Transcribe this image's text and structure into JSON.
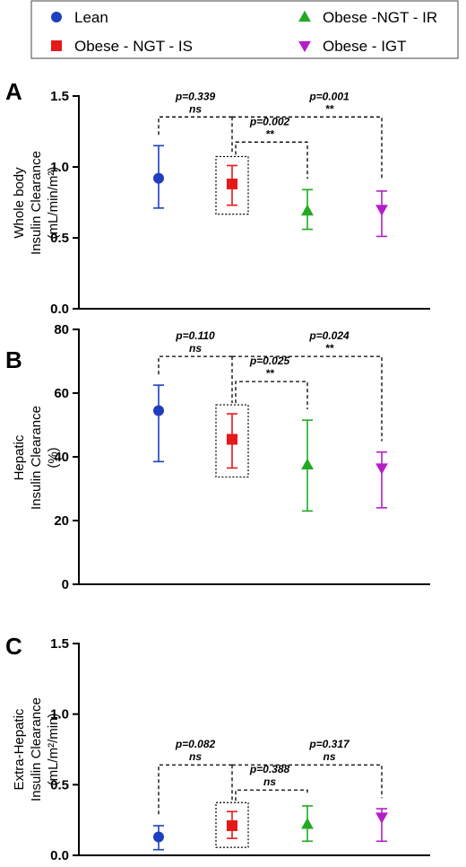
{
  "legend": {
    "items": [
      {
        "label": "Lean",
        "color": "#1f3fbf",
        "marker": "circle"
      },
      {
        "label": "Obese - NGT - IS",
        "color": "#e61919",
        "marker": "square"
      },
      {
        "label": "Obese -NGT - IR",
        "color": "#22aa22",
        "marker": "triangle-up"
      },
      {
        "label": "Obese - IGT",
        "color": "#b41ec8",
        "marker": "triangle-down"
      }
    ]
  },
  "chart_data": [
    {
      "type": "scatter",
      "panel": "A",
      "ylabel_lines": [
        "Whole body",
        "Insulin Clearance",
        "(mL/min/m²)"
      ],
      "ylim": [
        0,
        1.5
      ],
      "yticks": [
        "0.0",
        "0.5",
        "1.0",
        "1.5"
      ],
      "ytick_values": [
        0,
        0.5,
        1.0,
        1.5
      ],
      "groups": [
        "Lean",
        "Obese - NGT - IS",
        "Obese -NGT - IR",
        "Obese - IGT"
      ],
      "mean": [
        0.92,
        0.88,
        0.69,
        0.7
      ],
      "error_low": [
        0.71,
        0.73,
        0.56,
        0.51
      ],
      "error_high": [
        1.15,
        1.01,
        0.84,
        0.83
      ],
      "highlight_group": 1,
      "comparisons": [
        {
          "groups": [
            0,
            1
          ],
          "p": "p=0.339",
          "sig": "ns"
        },
        {
          "groups": [
            1,
            3
          ],
          "p": "p=0.001",
          "sig": "**"
        },
        {
          "groups": [
            1,
            2
          ],
          "p": "p=0.002",
          "sig": "**"
        }
      ]
    },
    {
      "type": "scatter",
      "panel": "B",
      "ylabel_lines": [
        "Hepatic",
        "Insulin Clearance",
        "(%)"
      ],
      "ylim": [
        0,
        80
      ],
      "yticks": [
        "0",
        "20",
        "40",
        "60",
        "80"
      ],
      "ytick_values": [
        0,
        20,
        40,
        60,
        80
      ],
      "groups": [
        "Lean",
        "Obese - NGT - IS",
        "Obese -NGT - IR",
        "Obese - IGT"
      ],
      "mean": [
        54.5,
        45.5,
        37.5,
        36.5
      ],
      "error_low": [
        38.5,
        36.5,
        23,
        24
      ],
      "error_high": [
        62.5,
        53.5,
        51.5,
        41.5
      ],
      "highlight_group": 1,
      "comparisons": [
        {
          "groups": [
            0,
            1
          ],
          "p": "p=0.110",
          "sig": "ns"
        },
        {
          "groups": [
            1,
            3
          ],
          "p": "p=0.024",
          "sig": "**"
        },
        {
          "groups": [
            1,
            2
          ],
          "p": "p=0.025",
          "sig": "**"
        }
      ]
    },
    {
      "type": "scatter",
      "panel": "C",
      "ylabel_lines": [
        "Extra-Hepatic",
        "Insulin Clearance",
        "(mL/m²/min)"
      ],
      "ylim": [
        0,
        1.5
      ],
      "yticks": [
        "0.0",
        "0.5",
        "1.0",
        "1.5"
      ],
      "ytick_values": [
        0,
        0.5,
        1.0,
        1.5
      ],
      "groups": [
        "Lean",
        "Obese - NGT - IS",
        "Obese -NGT - IR",
        "Obese - IGT"
      ],
      "mean": [
        0.13,
        0.21,
        0.22,
        0.27
      ],
      "error_low": [
        0.04,
        0.12,
        0.1,
        0.1
      ],
      "error_high": [
        0.21,
        0.31,
        0.35,
        0.33
      ],
      "highlight_group": 1,
      "comparisons": [
        {
          "groups": [
            0,
            1
          ],
          "p": "p=0.082",
          "sig": "ns"
        },
        {
          "groups": [
            1,
            3
          ],
          "p": "p=0.317",
          "sig": "ns"
        },
        {
          "groups": [
            1,
            2
          ],
          "p": "p=0.388",
          "sig": "ns"
        }
      ]
    }
  ]
}
